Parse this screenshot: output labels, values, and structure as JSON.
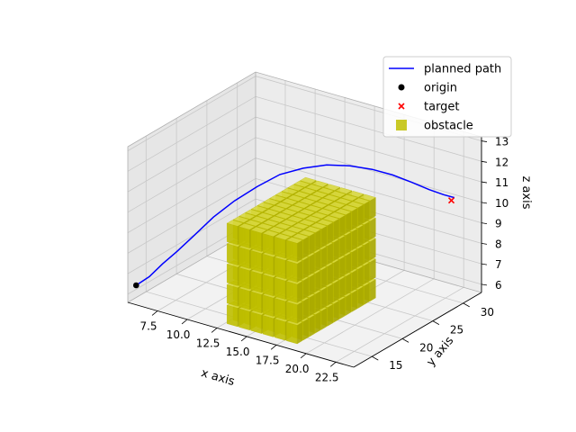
{
  "chart_data": {
    "type": "scatter",
    "projection": "3d",
    "xlabel": "x axis",
    "ylabel": "y axis",
    "zlabel": "z axis",
    "x_ticks": [
      "7.5",
      "10.0",
      "12.5",
      "15.0",
      "17.5",
      "20.0",
      "22.5"
    ],
    "y_ticks": [
      "15",
      "20",
      "25",
      "30"
    ],
    "z_ticks": [
      "6",
      "7",
      "8",
      "9",
      "10",
      "11",
      "12",
      "13"
    ],
    "xlim": [
      5,
      24
    ],
    "ylim": [
      12,
      33
    ],
    "zlim": [
      5.6,
      13.2
    ],
    "grid": true,
    "legend_position": "upper right",
    "legend": [
      {
        "label": "planned path",
        "color": "#0000ff",
        "marker": "line"
      },
      {
        "label": "origin",
        "color": "#000000",
        "marker": "circle"
      },
      {
        "label": "target",
        "color": "#ff0000",
        "marker": "x"
      },
      {
        "label": "obstacle",
        "color": "#bfbf00",
        "marker": "square"
      }
    ],
    "series": [
      {
        "name": "planned path",
        "type": "line",
        "color": "#0000ff",
        "points": [
          [
            5.6,
            12.2,
            6.5
          ],
          [
            6.3,
            13.0,
            6.9
          ],
          [
            7.0,
            13.8,
            7.5
          ],
          [
            7.8,
            14.6,
            8.1
          ],
          [
            8.8,
            15.5,
            8.9
          ],
          [
            9.9,
            16.5,
            9.8
          ],
          [
            11.1,
            17.6,
            10.6
          ],
          [
            12.4,
            18.8,
            11.3
          ],
          [
            13.7,
            20.0,
            11.9
          ],
          [
            15.0,
            21.3,
            12.2
          ],
          [
            16.3,
            22.6,
            12.35
          ],
          [
            17.6,
            23.9,
            12.3
          ],
          [
            18.8,
            25.2,
            12.1
          ],
          [
            19.9,
            26.4,
            11.8
          ],
          [
            20.9,
            27.6,
            11.4
          ],
          [
            21.8,
            28.7,
            11.0
          ],
          [
            22.5,
            29.7,
            10.7
          ],
          [
            23.0,
            30.5,
            10.5
          ]
        ]
      },
      {
        "name": "origin",
        "type": "scatter",
        "marker": "circle",
        "color": "#000000",
        "points": [
          [
            5.6,
            12.2,
            6.5
          ]
        ]
      },
      {
        "name": "target",
        "type": "scatter",
        "marker": "x",
        "color": "#ff0000",
        "points": [
          [
            22.9,
            30.2,
            10.4
          ]
        ]
      },
      {
        "name": "obstacle",
        "type": "voxels",
        "color": "#bfbf00",
        "x_range": [
          13,
          18
        ],
        "y_range": [
          14,
          26
        ],
        "z_range": [
          6,
          10
        ],
        "step": 1
      }
    ]
  }
}
